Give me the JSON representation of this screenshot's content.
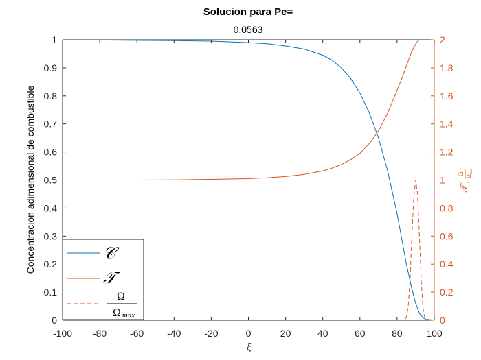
{
  "chart_data": {
    "type": "line",
    "title": "Solucion para Pe=",
    "subtitle": "0.0563",
    "xlabel": "ξ",
    "ylabel_left": "Concentracion adimensional de combustible",
    "ylabel_right_T": "𝒯",
    "ylabel_right_frac_num": "Ω",
    "ylabel_right_frac_den": "Ω",
    "ylabel_right_frac_den_sub": "max",
    "xlim": [
      -100,
      100
    ],
    "ylim_left": [
      0,
      1
    ],
    "ylim_right": [
      0,
      2
    ],
    "x_ticks": [
      -100,
      -80,
      -60,
      -40,
      -20,
      0,
      20,
      40,
      60,
      80,
      100
    ],
    "y_ticks_left": [
      0,
      0.1,
      0.2,
      0.3,
      0.4,
      0.5,
      0.6,
      0.7,
      0.8,
      0.9,
      1
    ],
    "y_ticks_right": [
      0,
      0.2,
      0.4,
      0.6,
      0.8,
      1,
      1.2,
      1.4,
      1.6,
      1.8,
      2
    ],
    "grid": false,
    "legend_position": "bottom-left",
    "colors": {
      "C": "#0072BD",
      "T": "#D95319",
      "axis_left": "#262626",
      "axis_right": "#D95319"
    },
    "series": [
      {
        "name": "𝒞",
        "axis": "left",
        "style": "solid",
        "x": [
          -100,
          -60,
          -40,
          -20,
          0,
          10,
          20,
          30,
          40,
          45,
          50,
          55,
          60,
          65,
          70,
          75,
          80,
          85,
          88,
          90,
          92,
          94,
          96,
          98,
          100
        ],
        "y": [
          1,
          0.998,
          0.997,
          0.995,
          0.99,
          0.986,
          0.978,
          0.967,
          0.945,
          0.927,
          0.9,
          0.862,
          0.81,
          0.74,
          0.65,
          0.53,
          0.38,
          0.2,
          0.11,
          0.06,
          0.025,
          0.008,
          0.002,
          0,
          0
        ]
      },
      {
        "name": "𝒯",
        "axis": "right",
        "style": "solid",
        "x": [
          -100,
          -60,
          -40,
          -20,
          0,
          10,
          20,
          30,
          40,
          45,
          50,
          55,
          60,
          65,
          70,
          75,
          80,
          83,
          86,
          88,
          90,
          91,
          92,
          94,
          96,
          100
        ],
        "y": [
          1,
          1,
          1.001,
          1.005,
          1.01,
          1.016,
          1.025,
          1.04,
          1.065,
          1.085,
          1.11,
          1.145,
          1.19,
          1.26,
          1.35,
          1.48,
          1.64,
          1.74,
          1.85,
          1.92,
          1.97,
          1.99,
          2,
          2,
          2,
          2
        ]
      },
      {
        "name": "Ω/Ω_max",
        "axis": "right",
        "style": "dashed",
        "x": [
          -100,
          80,
          84,
          85,
          86,
          87,
          88,
          89,
          90,
          91,
          92,
          93,
          94,
          95,
          100
        ],
        "y": [
          0,
          0,
          0,
          0.02,
          0.1,
          0.3,
          0.62,
          0.88,
          1.0,
          0.9,
          0.6,
          0.28,
          0.08,
          0.01,
          0
        ]
      }
    ]
  }
}
